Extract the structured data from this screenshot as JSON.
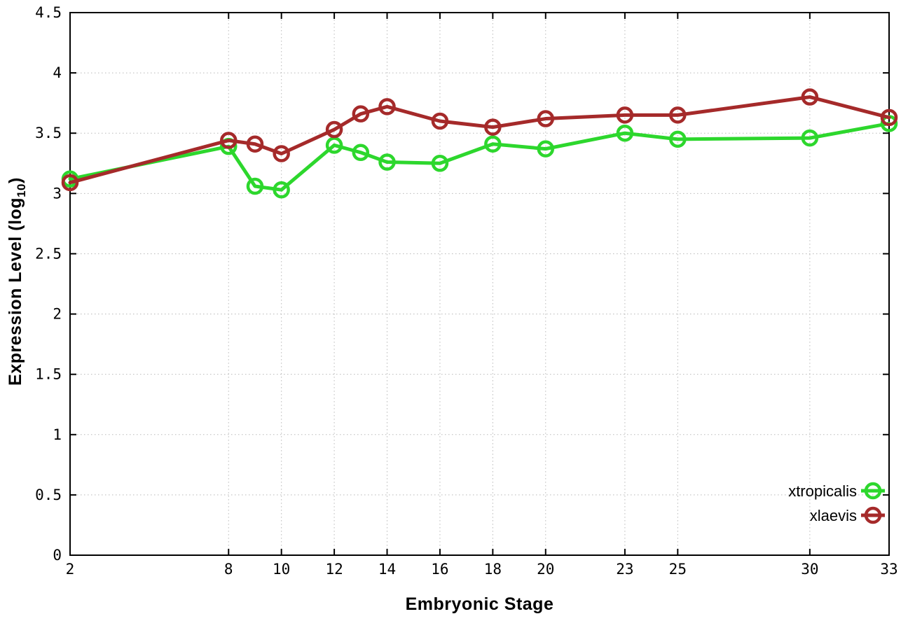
{
  "page": {
    "background": "#ffffff"
  },
  "chart_data": {
    "type": "line",
    "title": "",
    "xlabel": "Embryonic Stage",
    "ylabel": {
      "pre": "Expression Level (log",
      "sub": "10",
      "post": ")"
    },
    "x": [
      2,
      8,
      9,
      10,
      12,
      13,
      14,
      16,
      18,
      20,
      23,
      25,
      30,
      33
    ],
    "xlim": [
      2,
      33
    ],
    "ylim": [
      0,
      4.5
    ],
    "xtick_values": [
      2,
      8,
      10,
      12,
      14,
      16,
      18,
      20,
      23,
      25,
      30,
      33
    ],
    "xtick_labels": [
      "2",
      "8",
      "10",
      "12",
      "14",
      "16",
      "18",
      "20",
      "23",
      "25",
      "30",
      "33"
    ],
    "ytick_values": [
      0,
      0.5,
      1,
      1.5,
      2,
      2.5,
      3,
      3.5,
      4,
      4.5
    ],
    "ytick_labels": [
      "0",
      "0.5",
      "1",
      "1.5",
      "2",
      "2.5",
      "3",
      "3.5",
      "4",
      "4.5"
    ],
    "grid": true,
    "grid_color": "#b9b9b9",
    "axis_color": "#000000",
    "marker": "open-circle",
    "legend_position": "inside-bottom-right",
    "series": [
      {
        "name": "xtropicalis",
        "color": "#2dd72d",
        "values": [
          3.12,
          3.39,
          3.06,
          3.03,
          3.4,
          3.34,
          3.26,
          3.25,
          3.41,
          3.37,
          3.5,
          3.45,
          3.46,
          3.58
        ]
      },
      {
        "name": "xlaevis",
        "color": "#a52a2a",
        "values": [
          3.09,
          3.44,
          3.41,
          3.33,
          3.53,
          3.66,
          3.72,
          3.6,
          3.55,
          3.62,
          3.65,
          3.65,
          3.8,
          3.63
        ]
      }
    ]
  }
}
